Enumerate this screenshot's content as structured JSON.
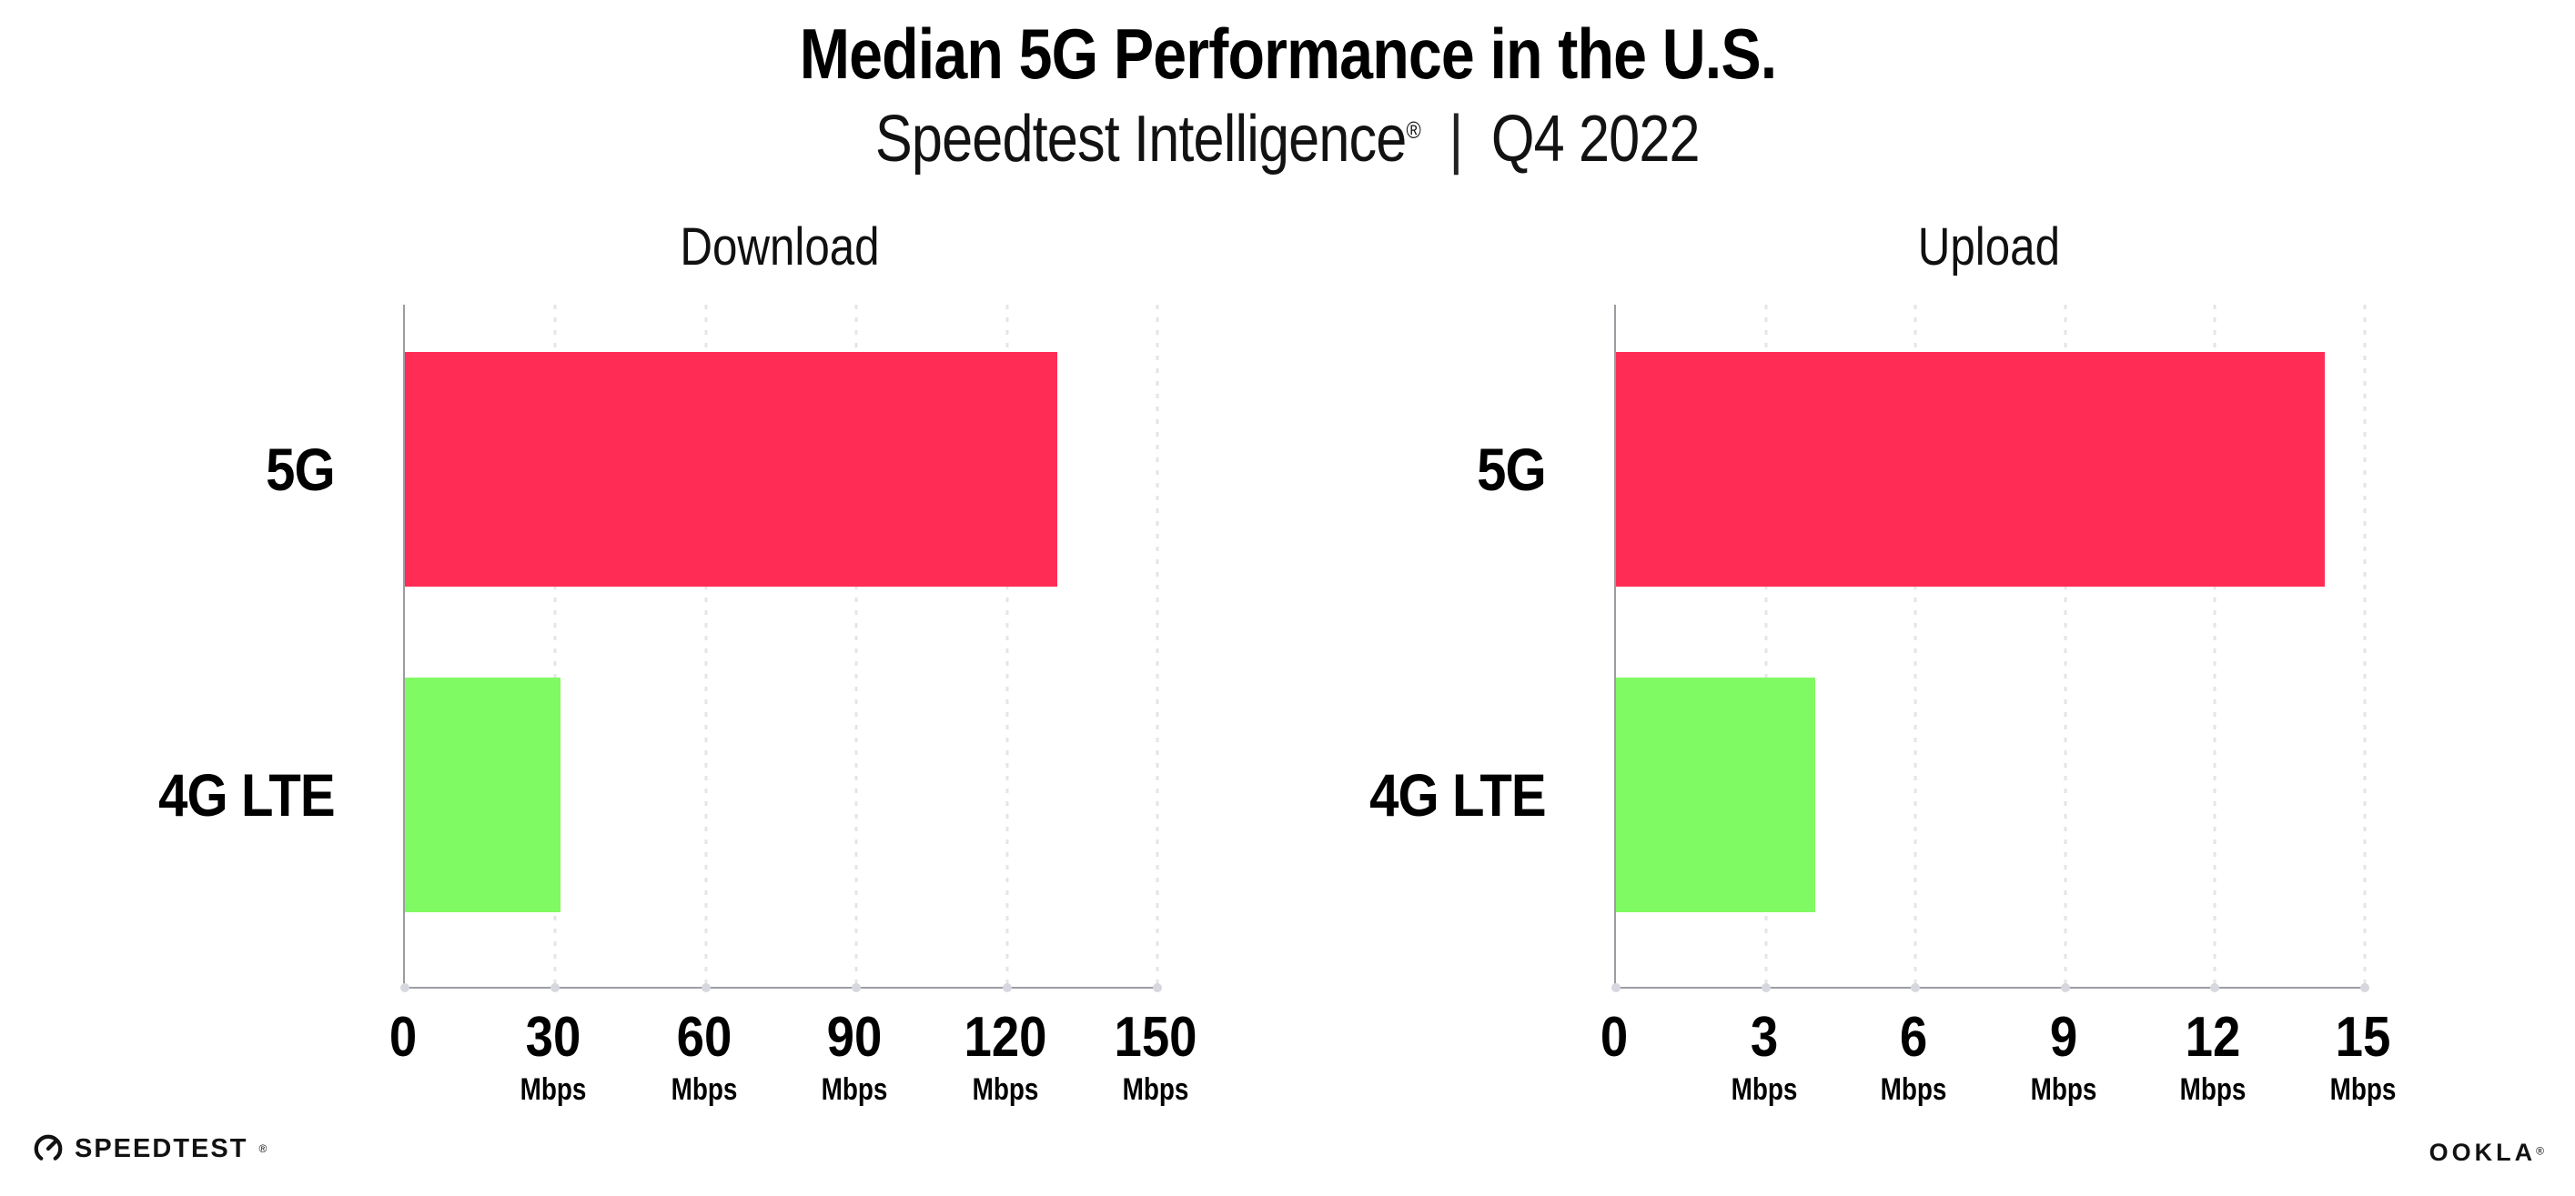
{
  "page": {
    "background": "#ffffff"
  },
  "header": {
    "title": "Median 5G Performance in the U.S.",
    "subtitle_brand": "Speedtest Intelligence",
    "subtitle_reg": "®",
    "subtitle_separator": "|",
    "subtitle_period": "Q4 2022"
  },
  "colors": {
    "bar_5g": "#FF2D55",
    "bar_4g_lte": "#80FA62",
    "axis": "#9C9CA3",
    "gridline": "#E4E4EA",
    "tick_dot": "#D7D7DF",
    "text": "#000000"
  },
  "chart_data": [
    {
      "type": "bar",
      "orientation": "horizontal",
      "title": "Download",
      "categories": [
        "5G",
        "4G LTE"
      ],
      "values": [
        130,
        31
      ],
      "unit": "Mbps",
      "xlabel": "",
      "ylabel": "",
      "xlim": [
        0,
        150
      ],
      "x_ticks": [
        0,
        30,
        60,
        90,
        120,
        150
      ],
      "grid": "vertical-dotted",
      "legend": "none",
      "bar_colors": [
        "#FF2D55",
        "#80FA62"
      ]
    },
    {
      "type": "bar",
      "orientation": "horizontal",
      "title": "Upload",
      "categories": [
        "5G",
        "4G LTE"
      ],
      "values": [
        14.2,
        4
      ],
      "unit": "Mbps",
      "xlabel": "",
      "ylabel": "",
      "xlim": [
        0,
        15
      ],
      "x_ticks": [
        0,
        3,
        6,
        9,
        12,
        15
      ],
      "grid": "vertical-dotted",
      "legend": "none",
      "bar_colors": [
        "#FF2D55",
        "#80FA62"
      ]
    }
  ],
  "footer": {
    "speedtest_label": "SPEEDTEST",
    "speedtest_reg": "®",
    "ookla_label": "OOKLA",
    "ookla_reg": "®"
  }
}
